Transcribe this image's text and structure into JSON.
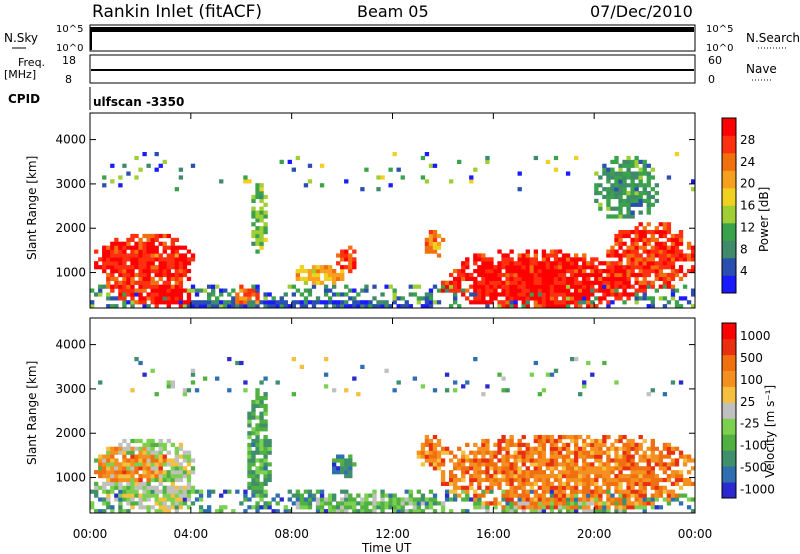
{
  "header": {
    "station": "Rankin Inlet (fitACF)",
    "beam": "Beam 05",
    "date": "07/Dec/2010"
  },
  "nsky_panel": {
    "left_label": "N.Sky",
    "right_label": "N.Search",
    "ticks": [
      "10^5",
      "10^0"
    ]
  },
  "freq_panel": {
    "left_label_1": "Freq.",
    "left_label_2": "[MHz]",
    "left_ticks": [
      "18",
      "8"
    ],
    "right_label": "Nave",
    "right_ticks": [
      "60",
      "0"
    ]
  },
  "cpid": {
    "label": "CPID",
    "program": "ulfscan -3350"
  },
  "chart_data": [
    {
      "type": "heatmap",
      "name_printed": "",
      "ylabel": "Slant Range [km]",
      "ylim": [
        200,
        4600
      ],
      "yticks": [
        "1000",
        "2000",
        "3000",
        "4000"
      ],
      "xticks": [
        "00:00",
        "04:00",
        "08:00",
        "12:00",
        "16:00",
        "20:00",
        "00:00"
      ],
      "colorbar": {
        "label": "Power [dB]",
        "ticks": [
          "4",
          "8",
          "12",
          "16",
          "20",
          "24",
          "28"
        ],
        "colors": [
          "#1a1aff",
          "#2a4fb0",
          "#3f8a6a",
          "#3aa24a",
          "#9fce35",
          "#f0d020",
          "#f7a020",
          "#f07010",
          "#ff3010",
          "#ff0000"
        ]
      },
      "blobs": [
        {
          "t0": 0.5,
          "t1": 4.0,
          "r0": 300,
          "r1": 1900,
          "v": 0.82
        },
        {
          "t0": 0.1,
          "t1": 4.2,
          "r0": 900,
          "r1": 1700,
          "v": 0.9
        },
        {
          "t0": 2.0,
          "t1": 4.0,
          "r0": 200,
          "r1": 700,
          "v": 0.95
        },
        {
          "t0": 5.7,
          "t1": 6.8,
          "r0": 250,
          "r1": 700,
          "v": 0.75
        },
        {
          "t0": 6.4,
          "t1": 7.1,
          "r0": 1400,
          "r1": 3000,
          "v": 0.4
        },
        {
          "t0": 8.2,
          "t1": 10.0,
          "r0": 700,
          "r1": 1200,
          "v": 0.6
        },
        {
          "t0": 9.8,
          "t1": 10.6,
          "r0": 1000,
          "r1": 1600,
          "v": 0.85
        },
        {
          "t0": 13.3,
          "t1": 14.0,
          "r0": 1300,
          "r1": 2000,
          "v": 0.7
        },
        {
          "t0": 14.0,
          "t1": 22.0,
          "r0": 200,
          "r1": 1300,
          "v": 0.9
        },
        {
          "t0": 14.5,
          "t1": 20.5,
          "r0": 500,
          "r1": 1500,
          "v": 0.88
        },
        {
          "t0": 20.5,
          "t1": 24.0,
          "r0": 600,
          "r1": 2100,
          "v": 0.86
        },
        {
          "t0": 3.0,
          "t1": 14.0,
          "r0": 200,
          "r1": 400,
          "v": 0.15
        },
        {
          "t0": 20.0,
          "t1": 22.5,
          "r0": 2200,
          "r1": 3600,
          "v": 0.3
        }
      ]
    },
    {
      "type": "heatmap",
      "name_printed": "",
      "ylabel": "Slant Range [km]",
      "ylim": [
        200,
        4600
      ],
      "yticks": [
        "1000",
        "2000",
        "3000",
        "4000"
      ],
      "xticks": [
        "00:00",
        "04:00",
        "08:00",
        "12:00",
        "16:00",
        "20:00",
        "00:00"
      ],
      "xlabel": "Time UT",
      "colorbar": {
        "label": "Velocity [m s⁻¹]",
        "ticks": [
          "1000",
          "500",
          "100",
          "25",
          "-25",
          "-100",
          "-500",
          "-1000"
        ],
        "colors": [
          "#2a2ad0",
          "#2f6fb0",
          "#3f8f6a",
          "#50b040",
          "#7cd050",
          "#c0c0c0",
          "#f5c040",
          "#f59020",
          "#f07010",
          "#e83010",
          "#ff0000"
        ]
      },
      "blobs": [
        {
          "t0": 0.2,
          "t1": 4.2,
          "r0": 300,
          "r1": 1900,
          "v": 0.45
        },
        {
          "t0": 0.1,
          "t1": 3.0,
          "r0": 900,
          "r1": 1700,
          "v": 0.72
        },
        {
          "t0": 2.5,
          "t1": 4.0,
          "r0": 200,
          "r1": 800,
          "v": 0.5
        },
        {
          "t0": 6.2,
          "t1": 7.2,
          "r0": 300,
          "r1": 3000,
          "v": 0.3
        },
        {
          "t0": 9.6,
          "t1": 10.6,
          "r0": 1000,
          "r1": 1500,
          "v": 0.2
        },
        {
          "t0": 8.0,
          "t1": 14.0,
          "r0": 200,
          "r1": 600,
          "v": 0.38
        },
        {
          "t0": 13.0,
          "t1": 14.2,
          "r0": 1200,
          "r1": 2000,
          "v": 0.72
        },
        {
          "t0": 14.0,
          "t1": 24.0,
          "r0": 250,
          "r1": 2000,
          "v": 0.74
        },
        {
          "t0": 15.0,
          "t1": 22.0,
          "r0": 200,
          "r1": 500,
          "v": 0.42
        }
      ]
    }
  ]
}
